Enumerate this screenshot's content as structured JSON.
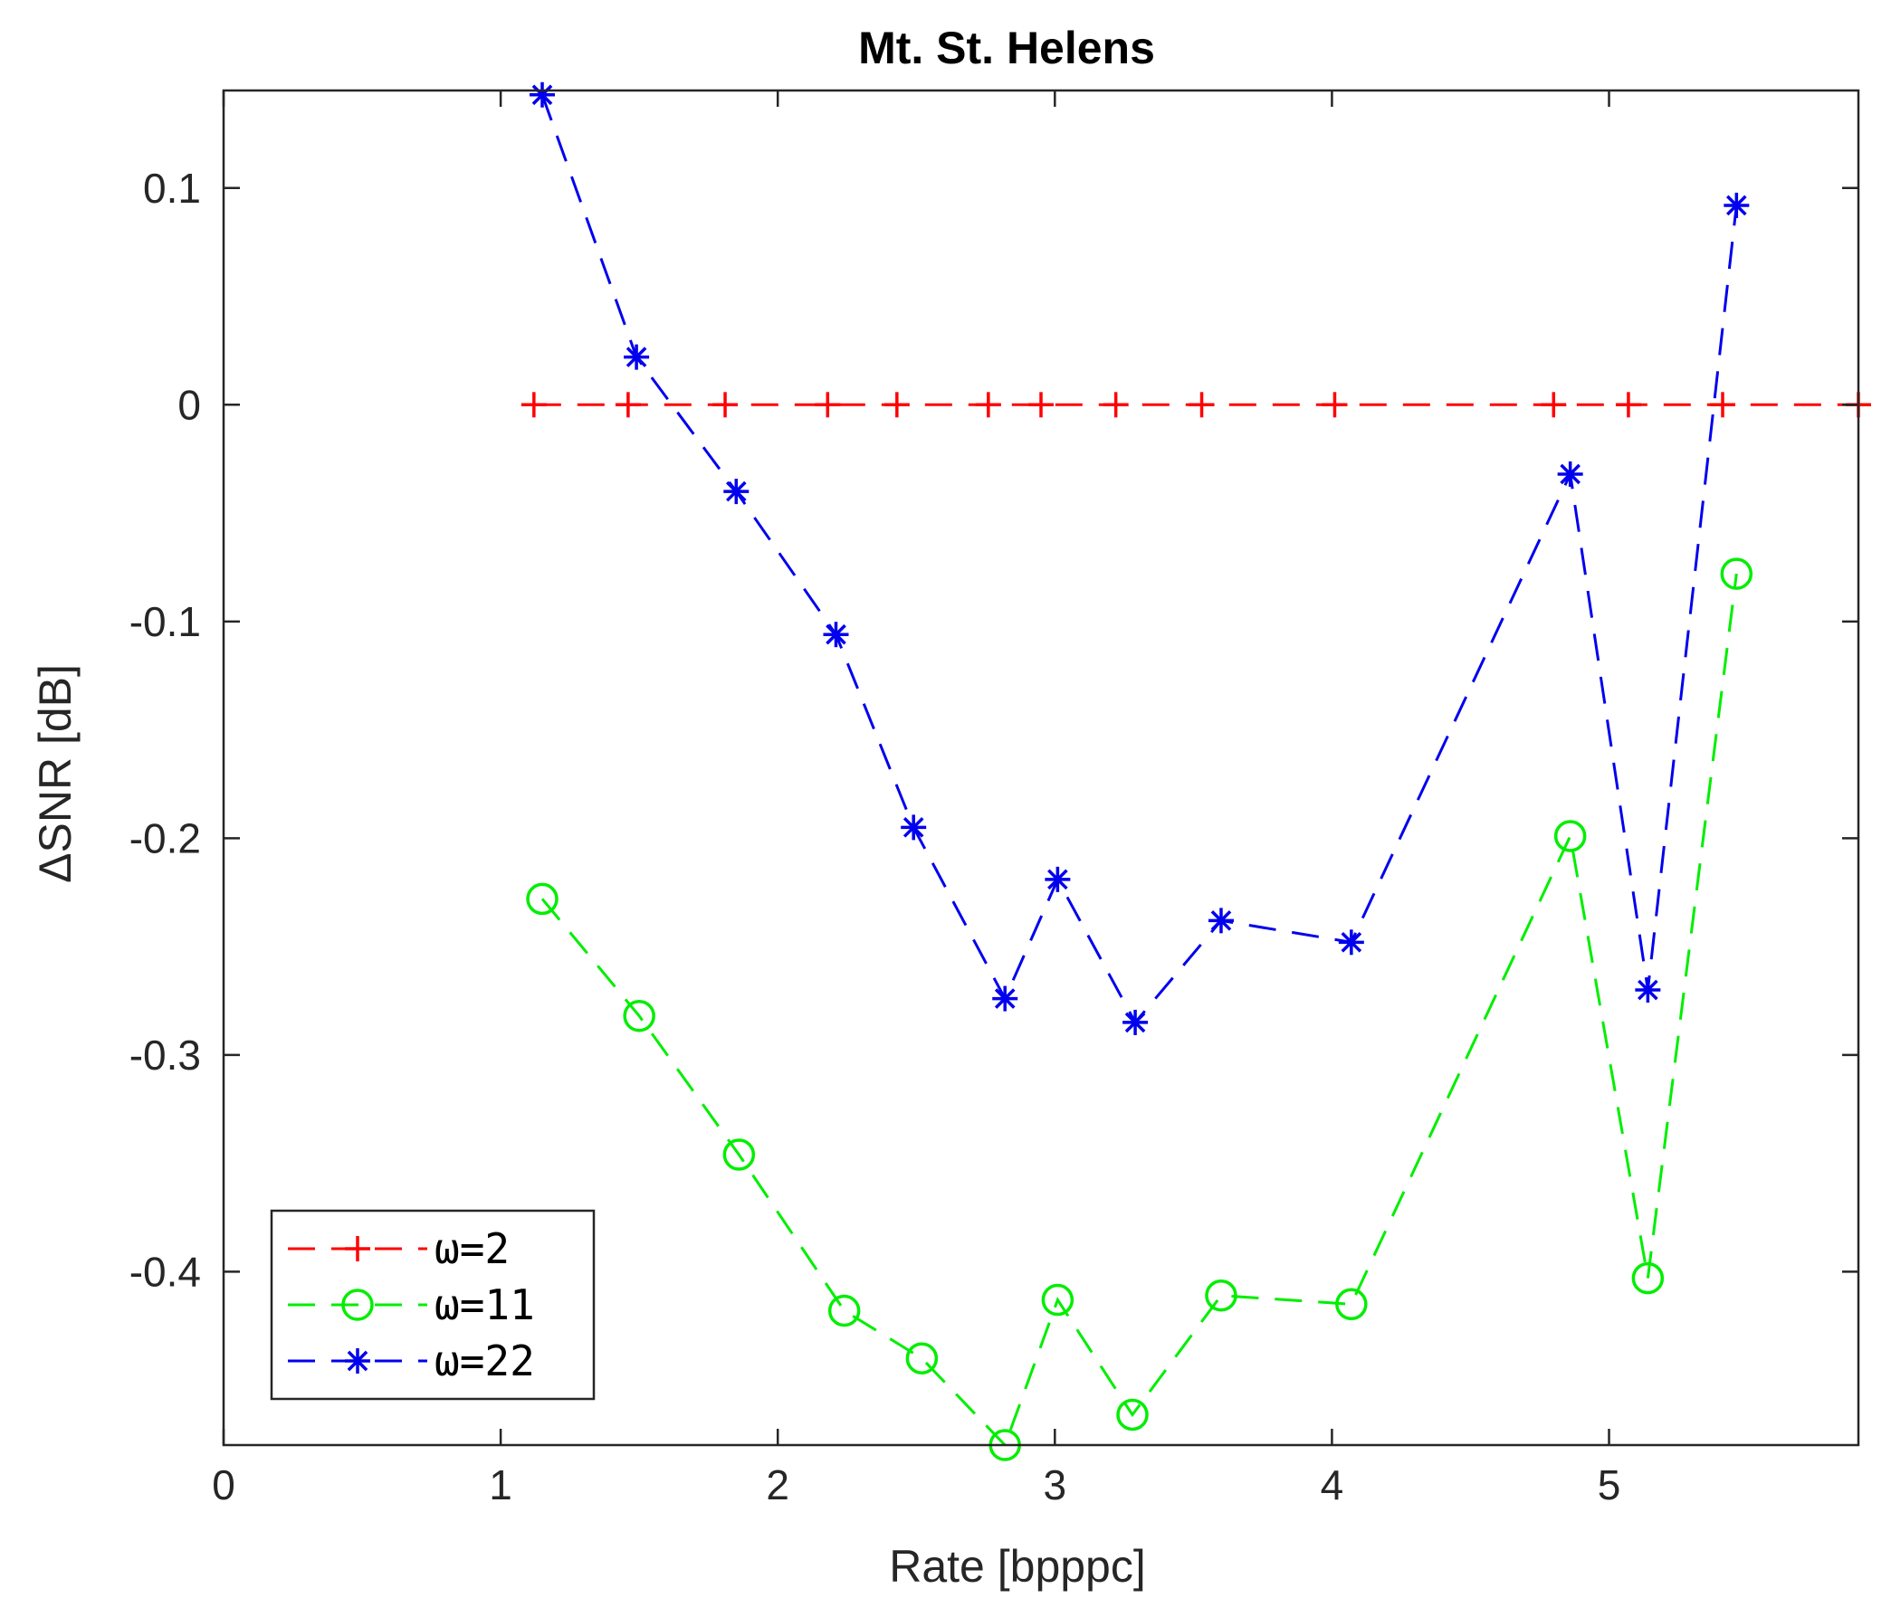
{
  "chart_data": {
    "type": "line",
    "title": "Mt. St. Helens",
    "xlabel": "Rate [bpppc]",
    "ylabel": "ΔSNR [dB]",
    "xlim": [
      0,
      5.9
    ],
    "ylim": [
      -0.48,
      0.145
    ],
    "xticks": [
      0,
      1,
      2,
      3,
      4,
      5
    ],
    "xtick_labels": [
      "0",
      "1",
      "2",
      "3",
      "4",
      "5"
    ],
    "yticks": [
      0.1,
      0,
      -0.1,
      -0.2,
      -0.3,
      -0.4
    ],
    "ytick_labels": [
      "0.1",
      "0",
      "-0.1",
      "-0.2",
      "-0.3",
      "-0.4"
    ],
    "grid": false,
    "legend_position": "bottom-left",
    "series": [
      {
        "name": "ω=2",
        "color": "#ff0000",
        "marker": "plus",
        "x": [
          1.12,
          1.46,
          1.81,
          2.18,
          2.43,
          2.76,
          2.95,
          3.22,
          3.53,
          4.01,
          4.8,
          5.07,
          5.41,
          5.9
        ],
        "y": [
          0,
          0,
          0,
          0,
          0,
          0,
          0,
          0,
          0,
          0,
          0,
          0,
          0,
          0
        ]
      },
      {
        "name": "ω=11",
        "color": "#00ee00",
        "marker": "circle",
        "x": [
          1.15,
          1.5,
          1.86,
          2.24,
          2.52,
          2.82,
          3.01,
          3.28,
          3.6,
          4.07,
          4.86,
          5.14,
          5.46
        ],
        "y": [
          -0.228,
          -0.282,
          -0.346,
          -0.418,
          -0.44,
          -0.48,
          -0.413,
          -0.466,
          -0.411,
          -0.415,
          -0.199,
          -0.403,
          -0.078
        ]
      },
      {
        "name": "ω=22",
        "color": "#0000ee",
        "marker": "asterisk",
        "x": [
          1.15,
          1.49,
          1.85,
          2.21,
          2.49,
          2.82,
          3.01,
          3.29,
          3.6,
          4.07,
          4.86,
          5.14,
          5.46
        ],
        "y": [
          0.143,
          0.022,
          -0.04,
          -0.106,
          -0.195,
          -0.274,
          -0.219,
          -0.285,
          -0.238,
          -0.248,
          -0.032,
          -0.27,
          0.092
        ]
      }
    ]
  }
}
